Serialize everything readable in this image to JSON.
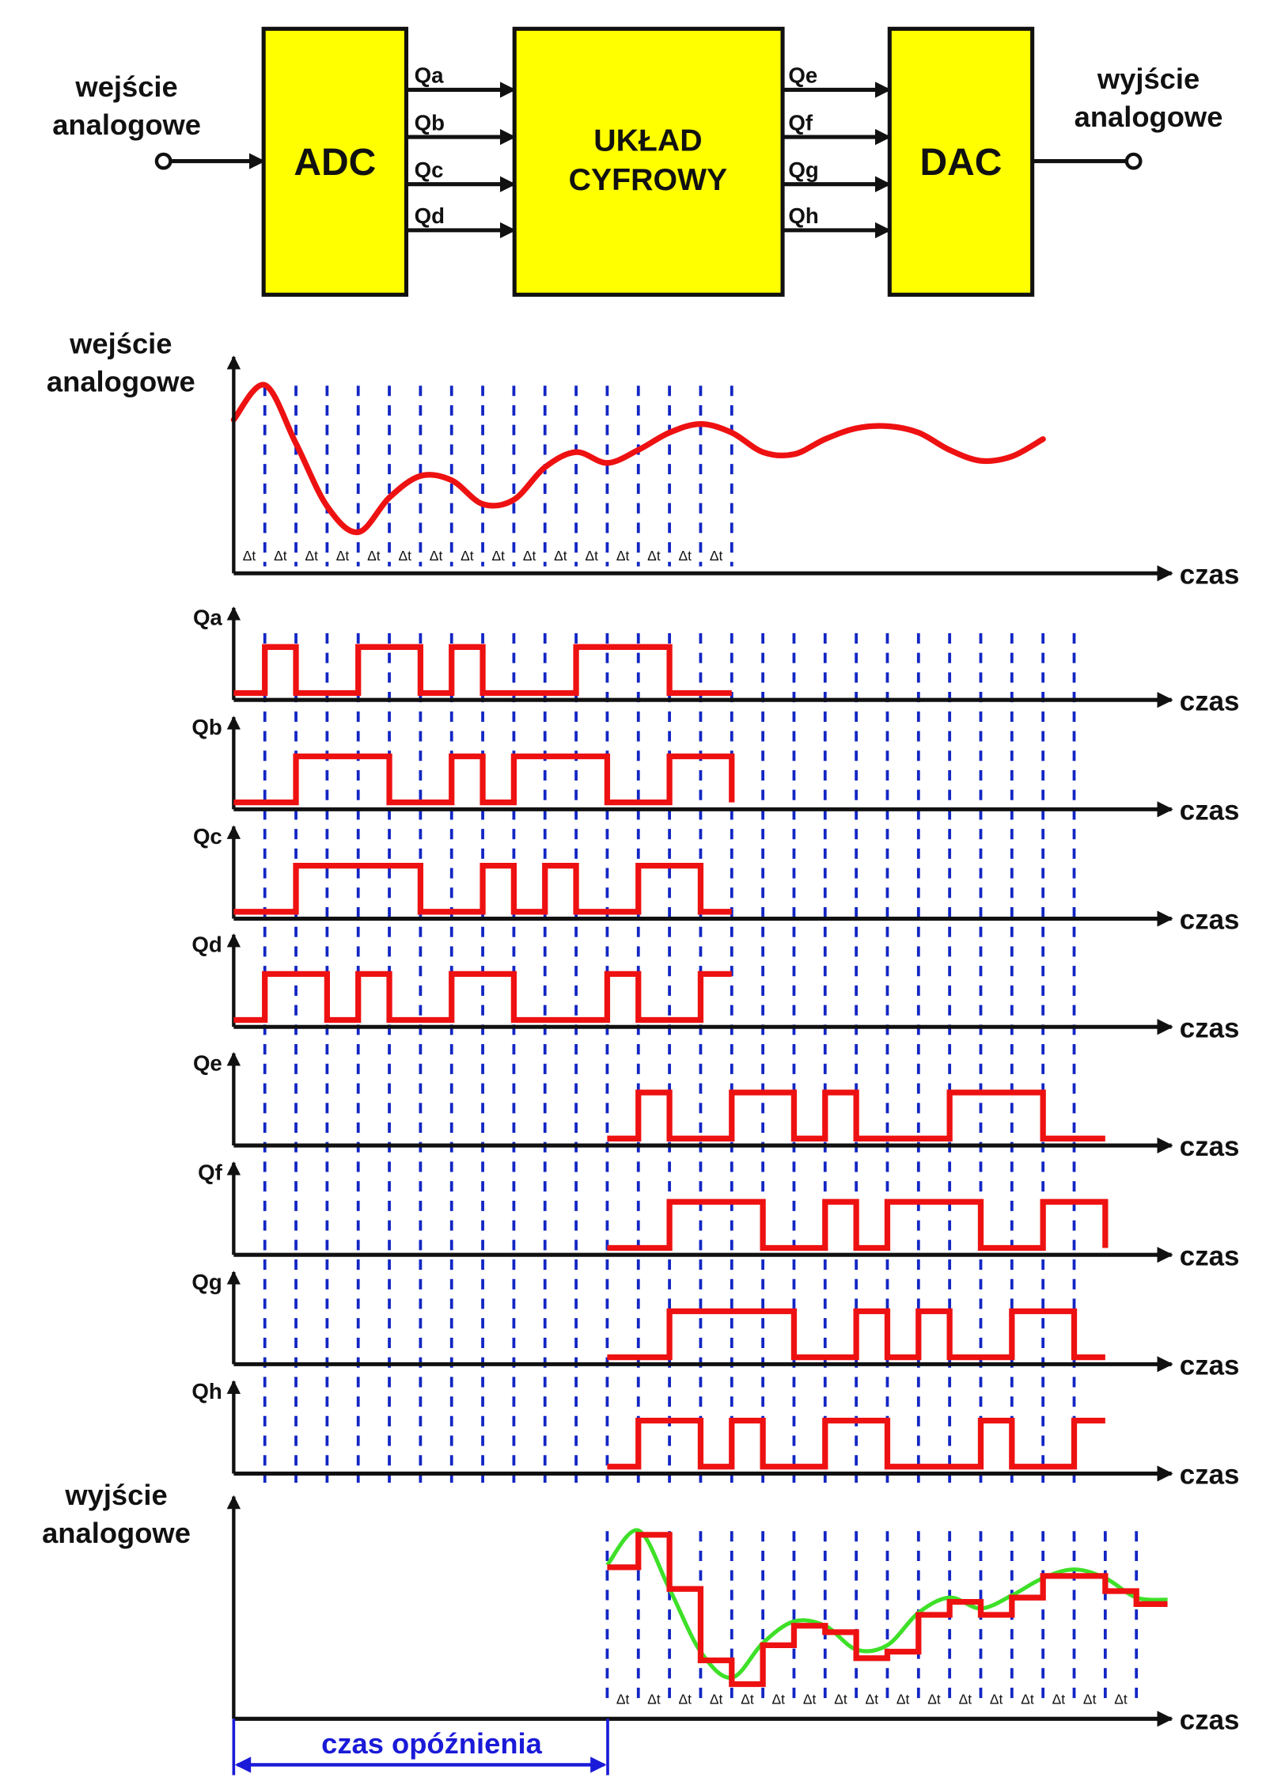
{
  "block_diagram": {
    "input_label": [
      "wejście",
      "analogowe"
    ],
    "output_label": [
      "wyjście",
      "analogowe"
    ],
    "adc": "ADC",
    "digital": [
      "UKŁAD",
      "CYFROWY"
    ],
    "dac": "DAC",
    "adc_outputs": [
      "Qa",
      "Qb",
      "Qc",
      "Qd"
    ],
    "dac_inputs": [
      "Qe",
      "Qf",
      "Qg",
      "Qh"
    ]
  },
  "labels": {
    "time_axis": "czas",
    "delta_t": "Δt",
    "input_panel": [
      "wejście",
      "analogowe"
    ],
    "output_panel": [
      "wyjście",
      "analogowe"
    ],
    "delay": "czas opóźnienia"
  },
  "colors": {
    "block": "#ffff00",
    "signal": "#ee1111",
    "grid": "#1226c4",
    "reconstructed": "#3ee028",
    "delay": "#1a1ad8"
  },
  "chart_data": {
    "type": "line",
    "time_unit": "Δt",
    "delay_intervals": 12,
    "analog_input": {
      "t": [
        0,
        1,
        2,
        3,
        4,
        5,
        6,
        7,
        8,
        9,
        10,
        11,
        12,
        13,
        14,
        15,
        16,
        17,
        18,
        19,
        20,
        21,
        22,
        23,
        24,
        25,
        26
      ],
      "values": [
        7.1,
        8.7,
        6.0,
        3.1,
        1.9,
        3.5,
        4.5,
        4.3,
        3.2,
        3.4,
        4.9,
        5.6,
        5.1,
        5.7,
        6.5,
        6.9,
        6.5,
        5.6,
        5.5,
        6.2,
        6.7,
        6.8,
        6.5,
        5.7,
        5.2,
        5.4,
        6.2
      ]
    },
    "digital_signals": [
      {
        "name": "Qa",
        "start": 0,
        "bits": [
          0,
          1,
          0,
          0,
          1,
          1,
          0,
          1,
          0,
          0,
          0,
          1,
          1,
          1,
          0,
          0
        ],
        "ends_low": false
      },
      {
        "name": "Qb",
        "start": 0,
        "bits": [
          0,
          0,
          1,
          1,
          1,
          0,
          0,
          1,
          0,
          1,
          1,
          1,
          0,
          0,
          1,
          1
        ],
        "ends_low": true
      },
      {
        "name": "Qc",
        "start": 0,
        "bits": [
          0,
          0,
          1,
          1,
          1,
          1,
          0,
          0,
          1,
          0,
          1,
          0,
          0,
          1,
          1,
          0
        ],
        "ends_low": false
      },
      {
        "name": "Qd",
        "start": 0,
        "bits": [
          0,
          1,
          1,
          0,
          1,
          0,
          0,
          1,
          1,
          0,
          0,
          0,
          1,
          0,
          0,
          1
        ],
        "ends_low": false
      },
      {
        "name": "Qe",
        "start": 12,
        "bits": [
          0,
          1,
          0,
          0,
          1,
          1,
          0,
          1,
          0,
          0,
          0,
          1,
          1,
          1,
          0,
          0
        ],
        "ends_low": false
      },
      {
        "name": "Qf",
        "start": 12,
        "bits": [
          0,
          0,
          1,
          1,
          1,
          0,
          0,
          1,
          0,
          1,
          1,
          1,
          0,
          0,
          1,
          1
        ],
        "ends_low": true
      },
      {
        "name": "Qg",
        "start": 12,
        "bits": [
          0,
          0,
          1,
          1,
          1,
          1,
          0,
          0,
          1,
          0,
          1,
          0,
          0,
          1,
          1,
          0
        ],
        "ends_low": false
      },
      {
        "name": "Qh",
        "start": 12,
        "bits": [
          0,
          1,
          1,
          0,
          1,
          0,
          0,
          1,
          1,
          0,
          0,
          0,
          1,
          0,
          0,
          1
        ],
        "ends_low": false
      }
    ],
    "analog_output_steps": {
      "start": 12,
      "values": [
        7.0,
        8.5,
        6.0,
        2.7,
        1.6,
        3.4,
        4.3,
        4.0,
        2.8,
        3.1,
        4.8,
        5.4,
        4.8,
        5.6,
        6.6,
        6.6,
        5.9,
        5.3
      ]
    },
    "reconstructed_curve_source_range": [
      0,
      18
    ]
  }
}
